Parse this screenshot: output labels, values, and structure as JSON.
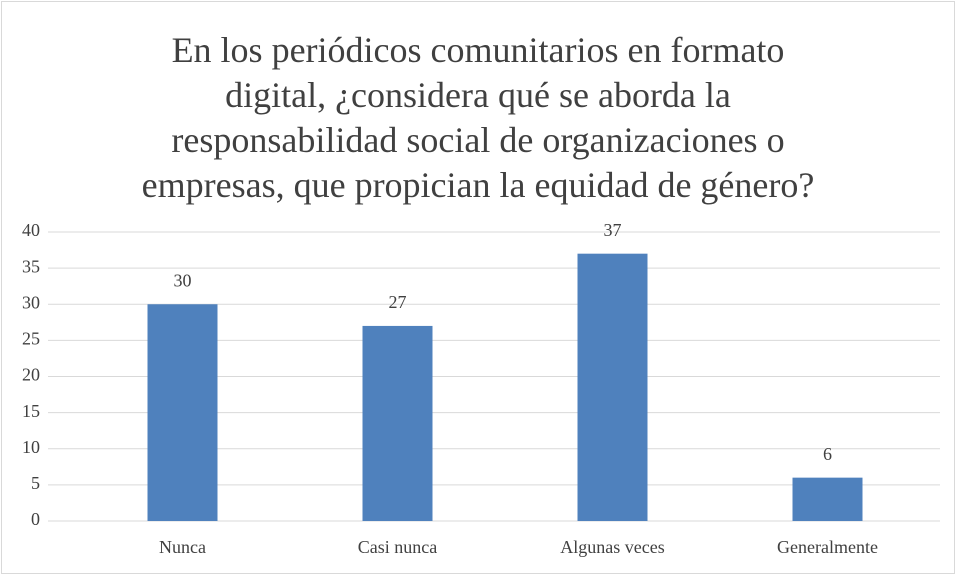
{
  "chart_data": {
    "type": "bar",
    "title": "En los periódicos comunitarios en formato digital, ¿considera qué se aborda la responsabilidad social de organizaciones o empresas, que propician la equidad de género?",
    "categories": [
      "Nunca",
      "Casi nunca",
      "Algunas veces",
      "Generalmente"
    ],
    "values": [
      30,
      27,
      37,
      6
    ],
    "color": "#4f81bd",
    "ylim": [
      0,
      40
    ],
    "yticks": [
      0,
      5,
      10,
      15,
      20,
      25,
      30,
      35,
      40
    ],
    "grid": true
  }
}
